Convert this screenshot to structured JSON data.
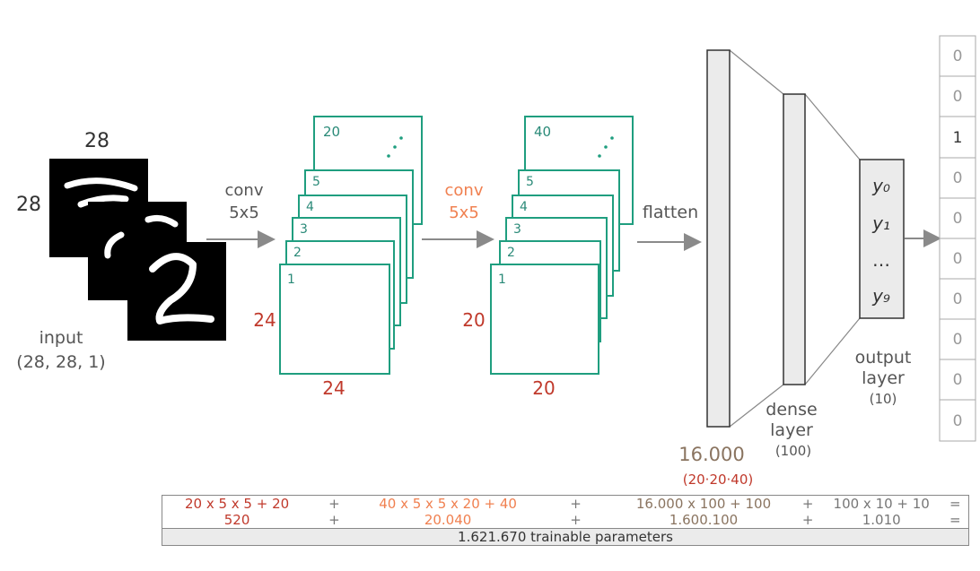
{
  "input": {
    "size_top": "28",
    "size_left": "28",
    "label": "input",
    "shape": "(28, 28, 1)"
  },
  "conv1": {
    "op_line1": "conv",
    "op_line2": "5x5",
    "layer_labels": [
      "1",
      "2",
      "3",
      "4",
      "5",
      "20"
    ],
    "height_label": "24",
    "width_label": "24",
    "colors": {
      "op": "#555555",
      "dims": "#c0392b"
    }
  },
  "conv2": {
    "op_line1": "conv",
    "op_line2": "5x5",
    "layer_labels": [
      "1",
      "2",
      "3",
      "4",
      "5",
      "40"
    ],
    "height_label": "20",
    "width_label": "20",
    "colors": {
      "op": "#f08050",
      "dims": "#c0392b"
    }
  },
  "flatten": {
    "label": "flatten",
    "size": "16.000",
    "size_formula": "(20·20·40)"
  },
  "dense": {
    "line1": "dense",
    "line2": "layer",
    "units": "(100)"
  },
  "output": {
    "line1": "output",
    "line2": "layer",
    "units": "(10)",
    "symbols": [
      "y₀",
      "y₁",
      "…",
      "y₉"
    ]
  },
  "one_hot": [
    "0",
    "0",
    "1",
    "0",
    "0",
    "0",
    "0",
    "0",
    "0",
    "0"
  ],
  "params_table": {
    "row1": [
      "20 x 5 x 5 + 20",
      "+",
      "40 x 5 x 5 x 20 + 40",
      "+",
      "16.000 x 100 + 100",
      "+",
      "100 x 10 + 10",
      "="
    ],
    "row2": [
      "520",
      "+",
      "20.040",
      "+",
      "1.600.100",
      "+",
      "1.010",
      "="
    ],
    "total": "1.621.670 trainable parameters"
  },
  "colors": {
    "accent_teal": "#1f9e7f",
    "red": "#c0392b",
    "orange": "#f08050",
    "brown": "#8a7460"
  }
}
